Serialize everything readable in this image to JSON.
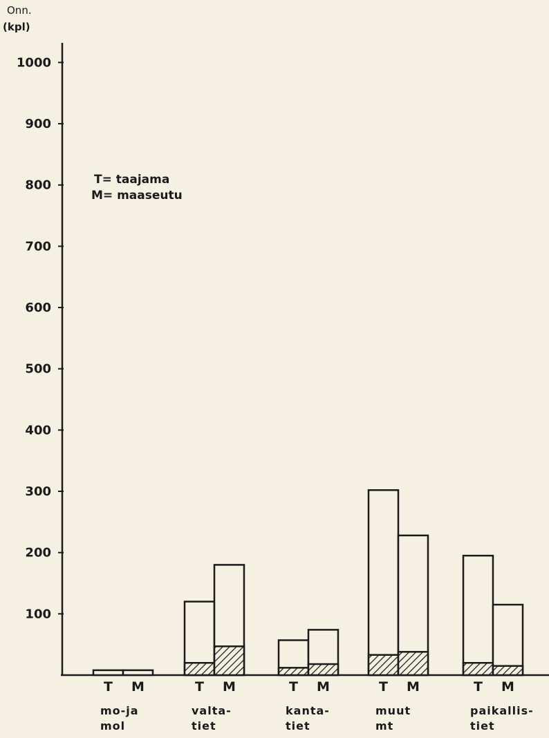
{
  "chart_data": {
    "type": "bar",
    "stacked": true,
    "ylabel": [
      "Onn.",
      "(kpl)"
    ],
    "ylim": [
      0,
      1050
    ],
    "yticks": [
      100,
      200,
      300,
      400,
      500,
      600,
      700,
      800,
      900,
      1000
    ],
    "ytick_labels": [
      "100",
      "200",
      "300",
      "400",
      "500",
      "600",
      "700",
      "800",
      "900",
      "1000"
    ],
    "legend": [
      "T= taajama",
      "M= maaseutu"
    ],
    "subcategories": [
      "T",
      "M"
    ],
    "groups": [
      {
        "label": [
          "mo-ja",
          "mol"
        ],
        "bars": [
          {
            "sub": "T",
            "total": 8,
            "hatched": 0
          },
          {
            "sub": "M",
            "total": 8,
            "hatched": 0
          }
        ]
      },
      {
        "label": [
          "valta-",
          "tiet"
        ],
        "bars": [
          {
            "sub": "T",
            "total": 120,
            "hatched": 20
          },
          {
            "sub": "M",
            "total": 180,
            "hatched": 47
          }
        ]
      },
      {
        "label": [
          "kanta-",
          "tiet"
        ],
        "bars": [
          {
            "sub": "T",
            "total": 57,
            "hatched": 12
          },
          {
            "sub": "M",
            "total": 74,
            "hatched": 18
          }
        ]
      },
      {
        "label": [
          "muut",
          "mt"
        ],
        "bars": [
          {
            "sub": "T",
            "total": 302,
            "hatched": 33
          },
          {
            "sub": "M",
            "total": 228,
            "hatched": 38
          }
        ]
      },
      {
        "label": [
          "paikallis-",
          "tiet"
        ],
        "bars": [
          {
            "sub": "T",
            "total": 195,
            "hatched": 20
          },
          {
            "sub": "M",
            "total": 115,
            "hatched": 15
          }
        ]
      }
    ],
    "colors": {
      "outline": "#1a1a1a",
      "background": "#f4f0e2",
      "bar_fill": "#f4f0e2"
    }
  }
}
